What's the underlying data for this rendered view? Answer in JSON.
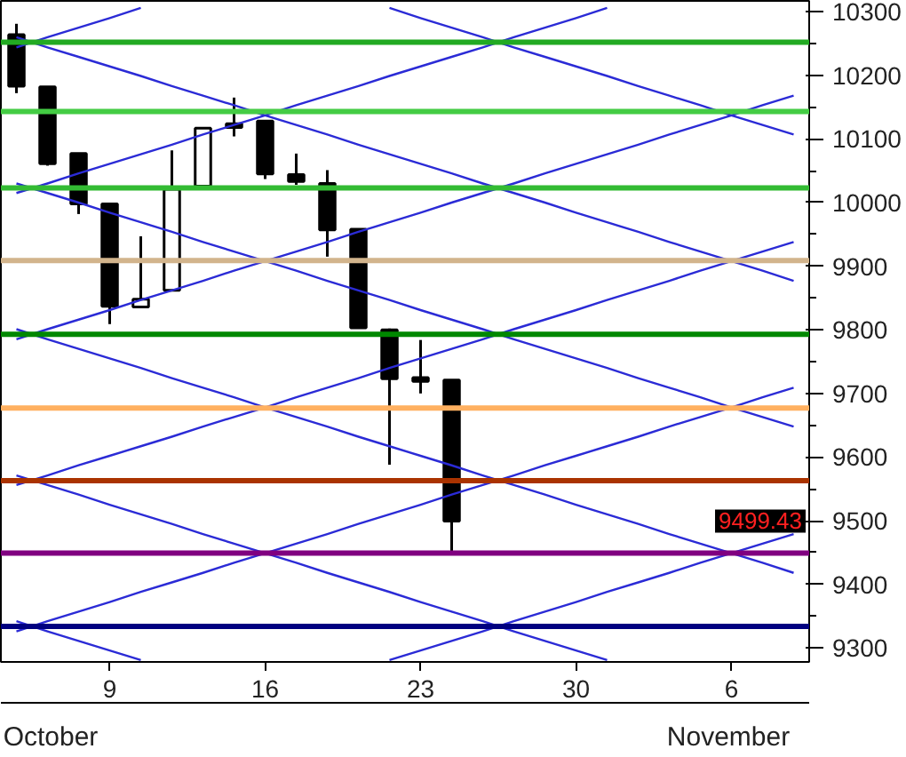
{
  "chart_data": {
    "type": "candlestick",
    "categories": [
      null,
      null,
      null,
      "9",
      null,
      null,
      null,
      null,
      "16",
      null,
      null,
      null,
      null,
      "23",
      null,
      null,
      null,
      null,
      "30",
      null,
      null,
      null,
      null,
      "6",
      null,
      null
    ],
    "ohlc": [
      [
        10264,
        10281,
        10172,
        10183
      ],
      [
        10182,
        10182,
        10058,
        10061
      ],
      [
        10077,
        10077,
        9982,
        9998
      ],
      [
        9998,
        9998,
        9809,
        9837
      ],
      [
        9836,
        9947,
        9836,
        9848
      ],
      [
        9862,
        10082,
        9862,
        10021
      ],
      [
        10026,
        10117,
        10026,
        10117
      ],
      [
        10124,
        10165,
        10104,
        10118
      ],
      [
        10128,
        10128,
        10037,
        10045
      ],
      [
        10044,
        10077,
        10028,
        10033
      ],
      [
        10030,
        10051,
        9915,
        9957
      ],
      [
        9958,
        9958,
        9803,
        9803
      ],
      [
        9800,
        9802,
        9588,
        9723
      ],
      [
        9725,
        9784,
        9700,
        9719
      ],
      [
        9721,
        9721,
        9451,
        9499.43
      ],
      null,
      null,
      null,
      null,
      null,
      null,
      null,
      null,
      null,
      null,
      null
    ],
    "series": [
      {
        "type": "line",
        "color": "#2b2bd6",
        "values": [
          null,
          null,
          null,
          null,
          null,
          null,
          null,
          null,
          null,
          null,
          null,
          null,
          10306,
          10290,
          10275,
          10260,
          10244,
          10229,
          10214,
          10199,
          10183,
          10168,
          10153,
          10137,
          10122,
          10107
        ]
      },
      {
        "type": "line",
        "color": "#2b2bd6",
        "values": [
          10260,
          10244,
          10229,
          10214,
          10199,
          10183,
          10168,
          10153,
          10137,
          10122,
          10107,
          10091,
          10076,
          10061,
          10046,
          10030,
          10015,
          10000,
          9984,
          9969,
          9954,
          9938,
          9923,
          9908,
          9893,
          9877
        ]
      },
      {
        "type": "line",
        "color": "#2b2bd6",
        "values": [
          10030,
          10015,
          10000,
          9984,
          9969,
          9954,
          9938,
          9923,
          9908,
          9893,
          9877,
          9862,
          9847,
          9831,
          9816,
          9801,
          9785,
          9770,
          9755,
          9740,
          9724,
          9709,
          9694,
          9678,
          9663,
          9648
        ]
      },
      {
        "type": "line",
        "color": "#2b2bd6",
        "values": [
          9801,
          9785,
          9770,
          9755,
          9740,
          9724,
          9709,
          9694,
          9678,
          9663,
          9648,
          9632,
          9617,
          9602,
          9587,
          9571,
          9556,
          9541,
          9525,
          9510,
          9495,
          9479,
          9464,
          9449,
          9434,
          9418
        ]
      },
      {
        "type": "line",
        "color": "#2b2bd6",
        "values": [
          9571,
          9556,
          9541,
          9525,
          9510,
          9495,
          9479,
          9464,
          9449,
          9434,
          9418,
          9403,
          9388,
          9372,
          9357,
          9342,
          9326,
          9311,
          9296,
          9281,
          null,
          null,
          null,
          null,
          null,
          null
        ]
      },
      {
        "type": "line",
        "color": "#2b2bd6",
        "values": [
          9342,
          9326,
          9311,
          9296,
          9281,
          null,
          null,
          null,
          null,
          null,
          null,
          null,
          null,
          null,
          null,
          null,
          null,
          null,
          null,
          null,
          null,
          null,
          null,
          null,
          null,
          null
        ]
      },
      {
        "type": "line",
        "color": "#2b2bd6",
        "values": [
          10244,
          10260,
          10275,
          10290,
          10306,
          null,
          null,
          null,
          null,
          null,
          null,
          null,
          null,
          null,
          null,
          null,
          null,
          null,
          null,
          null,
          null,
          null,
          null,
          null,
          null,
          null
        ]
      },
      {
        "type": "line",
        "color": "#2b2bd6",
        "values": [
          10015,
          10030,
          10046,
          10061,
          10076,
          10091,
          10107,
          10122,
          10137,
          10153,
          10168,
          10183,
          10199,
          10214,
          10229,
          10244,
          10260,
          10275,
          10290,
          10306,
          null,
          null,
          null,
          null,
          null,
          null
        ]
      },
      {
        "type": "line",
        "color": "#2b2bd6",
        "values": [
          9785,
          9801,
          9816,
          9831,
          9847,
          9862,
          9877,
          9893,
          9908,
          9923,
          9938,
          9954,
          9969,
          9984,
          10000,
          10015,
          10030,
          10046,
          10061,
          10076,
          10091,
          10107,
          10122,
          10137,
          10153,
          10168
        ]
      },
      {
        "type": "line",
        "color": "#2b2bd6",
        "values": [
          9556,
          9571,
          9587,
          9602,
          9617,
          9632,
          9648,
          9663,
          9678,
          9694,
          9709,
          9724,
          9740,
          9755,
          9770,
          9785,
          9801,
          9816,
          9831,
          9847,
          9862,
          9877,
          9893,
          9908,
          9923,
          9938
        ]
      },
      {
        "type": "line",
        "color": "#2b2bd6",
        "values": [
          9326,
          9342,
          9357,
          9372,
          9388,
          9403,
          9418,
          9434,
          9449,
          9464,
          9479,
          9495,
          9510,
          9525,
          9541,
          9556,
          9571,
          9587,
          9602,
          9617,
          9632,
          9648,
          9663,
          9678,
          9694,
          9709
        ]
      },
      {
        "type": "line",
        "color": "#2b2bd6",
        "values": [
          null,
          null,
          null,
          null,
          null,
          null,
          null,
          null,
          null,
          null,
          null,
          null,
          9281,
          9296,
          9311,
          9326,
          9342,
          9357,
          9372,
          9388,
          9403,
          9418,
          9434,
          9449,
          9464,
          9479
        ]
      }
    ],
    "ref_lines": [
      {
        "axis": "y",
        "value": 10252,
        "color": "#22aa22"
      },
      {
        "axis": "y",
        "value": 10143,
        "color": "#44cc44"
      },
      {
        "axis": "y",
        "value": 10023,
        "color": "#33bb33"
      },
      {
        "axis": "y",
        "value": 9909,
        "color": "#d2b48c"
      },
      {
        "axis": "y",
        "value": 9793,
        "color": "#008800"
      },
      {
        "axis": "y",
        "value": 9677,
        "color": "#ffb060"
      },
      {
        "axis": "y",
        "value": 9563,
        "color": "#aa3300"
      },
      {
        "axis": "y",
        "value": 9449,
        "color": "#800080"
      },
      {
        "axis": "y",
        "value": 9334,
        "color": "#000080"
      }
    ],
    "annotations": [
      "9499.43",
      "October",
      "November"
    ],
    "ylim": [
      9278,
      10317
    ],
    "yticks": [
      9300,
      9400,
      9500,
      9600,
      9700,
      9800,
      9900,
      10000,
      10100,
      10200,
      10300
    ],
    "grid": false
  }
}
